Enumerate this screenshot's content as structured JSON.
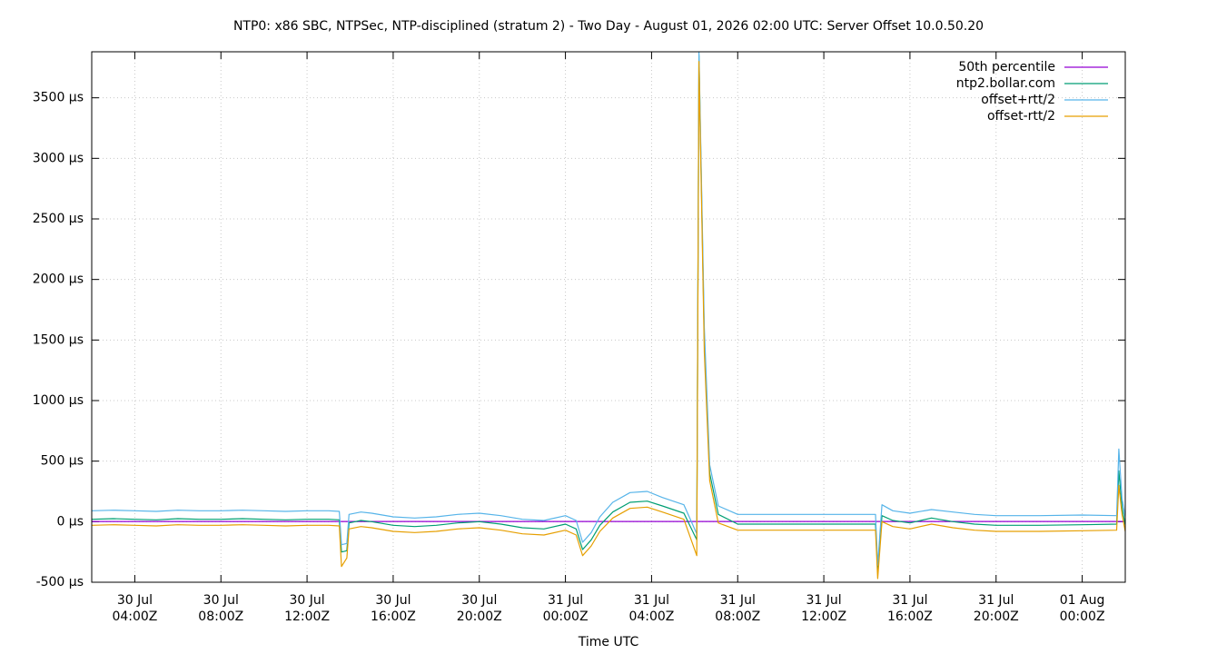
{
  "chart_data": {
    "type": "line",
    "title": "NTP0: x86 SBC, NTPSec, NTP-disciplined (stratum 2) - Two Day - August 01, 2026 02:00 UTC: Server Offset 10.0.50.20",
    "xlabel": "Time UTC",
    "x": [
      "07-30T02:00",
      "07-30T03:00",
      "07-30T04:00",
      "07-30T05:00",
      "07-30T06:00",
      "07-30T07:00",
      "07-30T08:00",
      "07-30T09:00",
      "07-30T10:00",
      "07-30T11:00",
      "07-30T12:00",
      "07-30T13:00",
      "07-30T13:30",
      "07-30T13:36",
      "07-30T13:51",
      "07-30T13:57",
      "07-30T14:30",
      "07-30T15:00",
      "07-30T16:00",
      "07-30T17:00",
      "07-30T18:00",
      "07-30T19:00",
      "07-30T20:00",
      "07-30T21:00",
      "07-30T22:00",
      "07-30T23:00",
      "07-31T00:00",
      "07-31T00:30",
      "07-31T00:48",
      "07-31T01:12",
      "07-31T01:36",
      "07-31T02:12",
      "07-31T03:00",
      "07-31T03:48",
      "07-31T04:30",
      "07-31T05:30",
      "07-31T06:06",
      "07-31T06:12",
      "07-31T06:27",
      "07-31T06:42",
      "07-31T07:06",
      "07-31T08:00",
      "07-31T09:00",
      "07-31T11:00",
      "07-31T13:00",
      "07-31T14:24",
      "07-31T14:30",
      "07-31T14:42",
      "07-31T15:12",
      "07-31T16:00",
      "07-31T17:00",
      "07-31T18:00",
      "07-31T19:00",
      "07-31T20:00",
      "07-31T22:00",
      "08-01T00:00",
      "08-01T01:36",
      "08-01T01:42",
      "08-01T01:51",
      "08-01T02:00"
    ],
    "series": [
      {
        "name": "50th percentile",
        "color": "#9400d3",
        "x": [
          "07-30T02:00",
          "08-01T02:00"
        ],
        "values": [
          2,
          2
        ]
      },
      {
        "name": "ntp2.bollar.com",
        "color": "#009e73",
        "values": [
          20,
          25,
          20,
          15,
          25,
          20,
          20,
          25,
          20,
          15,
          20,
          20,
          15,
          -250,
          -240,
          -10,
          10,
          0,
          -30,
          -40,
          -30,
          -10,
          0,
          -20,
          -50,
          -60,
          -20,
          -60,
          -230,
          -150,
          -30,
          80,
          160,
          170,
          130,
          70,
          -150,
          3850,
          1500,
          400,
          60,
          -20,
          -20,
          -20,
          -20,
          -20,
          -420,
          50,
          10,
          -10,
          30,
          0,
          -20,
          -30,
          -30,
          -25,
          -20,
          420,
          120,
          -30
        ]
      },
      {
        "name": "offset+rtt/2",
        "color": "#56b4e9",
        "values": [
          90,
          95,
          90,
          85,
          95,
          90,
          90,
          95,
          90,
          85,
          90,
          90,
          85,
          -190,
          -180,
          60,
          80,
          70,
          40,
          30,
          40,
          60,
          70,
          50,
          20,
          10,
          50,
          10,
          -170,
          -90,
          40,
          160,
          240,
          250,
          200,
          140,
          -100,
          3880,
          1600,
          470,
          130,
          60,
          60,
          60,
          60,
          60,
          -360,
          140,
          90,
          70,
          100,
          80,
          60,
          50,
          50,
          55,
          50,
          600,
          190,
          40
        ]
      },
      {
        "name": "offset-rtt/2",
        "color": "#e69f00",
        "values": [
          -30,
          -25,
          -30,
          -35,
          -25,
          -30,
          -30,
          -25,
          -30,
          -35,
          -30,
          -30,
          -35,
          -370,
          -300,
          -60,
          -40,
          -50,
          -80,
          -90,
          -80,
          -60,
          -50,
          -70,
          -100,
          -110,
          -70,
          -110,
          -280,
          -200,
          -80,
          30,
          110,
          120,
          80,
          20,
          -280,
          3800,
          1400,
          340,
          -10,
          -70,
          -70,
          -70,
          -70,
          -70,
          -470,
          0,
          -40,
          -60,
          -20,
          -50,
          -70,
          -80,
          -80,
          -75,
          -70,
          300,
          60,
          -80
        ]
      }
    ],
    "xlim": [
      "07-30T02:00",
      "08-01T02:00"
    ],
    "xticks": [
      {
        "value": "07-30T04:00",
        "label": [
          "30 Jul",
          "04:00Z"
        ]
      },
      {
        "value": "07-30T08:00",
        "label": [
          "30 Jul",
          "08:00Z"
        ]
      },
      {
        "value": "07-30T12:00",
        "label": [
          "30 Jul",
          "12:00Z"
        ]
      },
      {
        "value": "07-30T16:00",
        "label": [
          "30 Jul",
          "16:00Z"
        ]
      },
      {
        "value": "07-30T20:00",
        "label": [
          "30 Jul",
          "20:00Z"
        ]
      },
      {
        "value": "07-31T00:00",
        "label": [
          "31 Jul",
          "00:00Z"
        ]
      },
      {
        "value": "07-31T04:00",
        "label": [
          "31 Jul",
          "04:00Z"
        ]
      },
      {
        "value": "07-31T08:00",
        "label": [
          "31 Jul",
          "08:00Z"
        ]
      },
      {
        "value": "07-31T12:00",
        "label": [
          "31 Jul",
          "12:00Z"
        ]
      },
      {
        "value": "07-31T16:00",
        "label": [
          "31 Jul",
          "16:00Z"
        ]
      },
      {
        "value": "07-31T20:00",
        "label": [
          "31 Jul",
          "20:00Z"
        ]
      },
      {
        "value": "08-01T00:00",
        "label": [
          "01 Aug",
          "00:00Z"
        ]
      }
    ],
    "ylim": [
      -500,
      3880
    ],
    "yticks": [
      {
        "value": -500,
        "label": "-500 µs"
      },
      {
        "value": 0,
        "label": "0 µs"
      },
      {
        "value": 500,
        "label": "500 µs"
      },
      {
        "value": 1000,
        "label": "1000 µs"
      },
      {
        "value": 1500,
        "label": "1500 µs"
      },
      {
        "value": 2000,
        "label": "2000 µs"
      },
      {
        "value": 2500,
        "label": "2500 µs"
      },
      {
        "value": 3000,
        "label": "3000 µs"
      },
      {
        "value": 3500,
        "label": "3500 µs"
      }
    ],
    "grid": true,
    "legend": "top-right"
  }
}
